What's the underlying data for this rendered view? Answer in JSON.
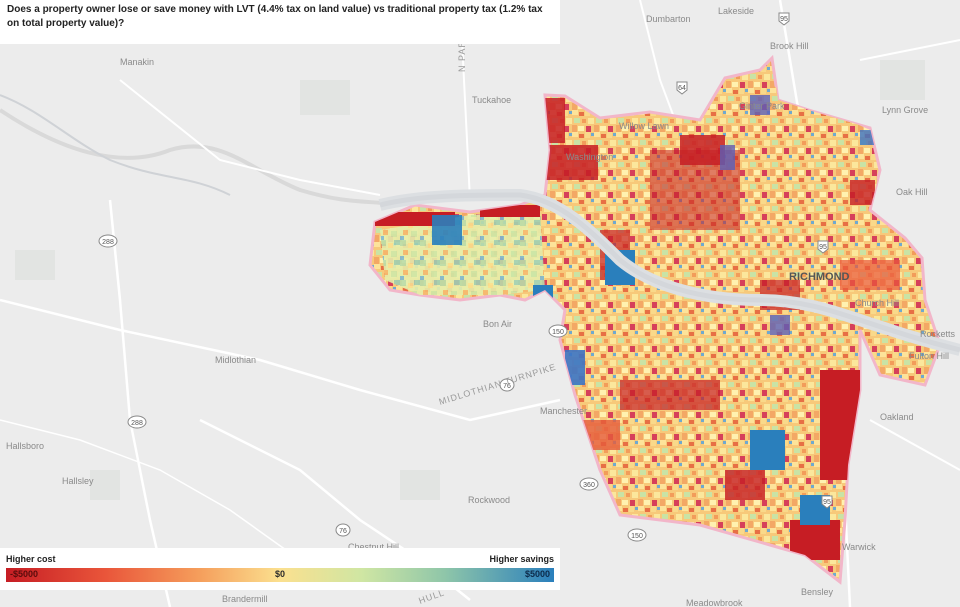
{
  "title": "Does a property owner lose or save money with LVT (4.4% tax on land value) vs traditional property tax (1.2% tax on total property value)?",
  "legend": {
    "low_label": "Higher cost",
    "high_label": "Higher savings",
    "min_tick": "-$5000",
    "mid_tick": "$0",
    "max_tick": "$5000",
    "colors": [
      "#c61d24",
      "#f59d5b",
      "#fbe08f",
      "#8fc6a9",
      "#2a7fbc"
    ]
  },
  "places": {
    "dumbarton": "Dumbarton",
    "lakeside": "Lakeside",
    "brook_hill": "Brook Hill",
    "manakin": "Manakin",
    "tuckahoe": "Tuckahoe",
    "lynn_grove": "Lynn Grove",
    "willow_lawn": "Willow Lawn",
    "ginter_park": "Ginter Park",
    "oak_hill": "Oak Hill",
    "bon_air": "Bon Air",
    "richmond": "RICHMOND",
    "church_hill": "Church Hill",
    "rocketts": "Rocketts",
    "fulton_hill": "Fulton Hill",
    "midlothian": "Midlothian",
    "manchester": "Manchester",
    "oakland": "Oakland",
    "hallsboro": "Hallsboro",
    "hallsley": "Hallsley",
    "rockwood": "Rockwood",
    "chestnut_hill": "Chestnut Hill",
    "brandermill": "Brandermill",
    "bensley": "Bensley",
    "warwick": "Warwick",
    "meadowbrook": "Meadowbrook",
    "washington": "Washington"
  },
  "roads": {
    "midlothian_turnpike": "MIDLOTHIAN TURNPIKE",
    "parkway": "N PARHAM",
    "hull": "HULL"
  },
  "shields": {
    "s288a": "288",
    "s288b": "288",
    "s76a": "76",
    "s76b": "76",
    "s150a": "150",
    "s150b": "150",
    "s360": "360",
    "s64": "64",
    "s95a": "95",
    "s95b": "95",
    "s95c": "95"
  }
}
